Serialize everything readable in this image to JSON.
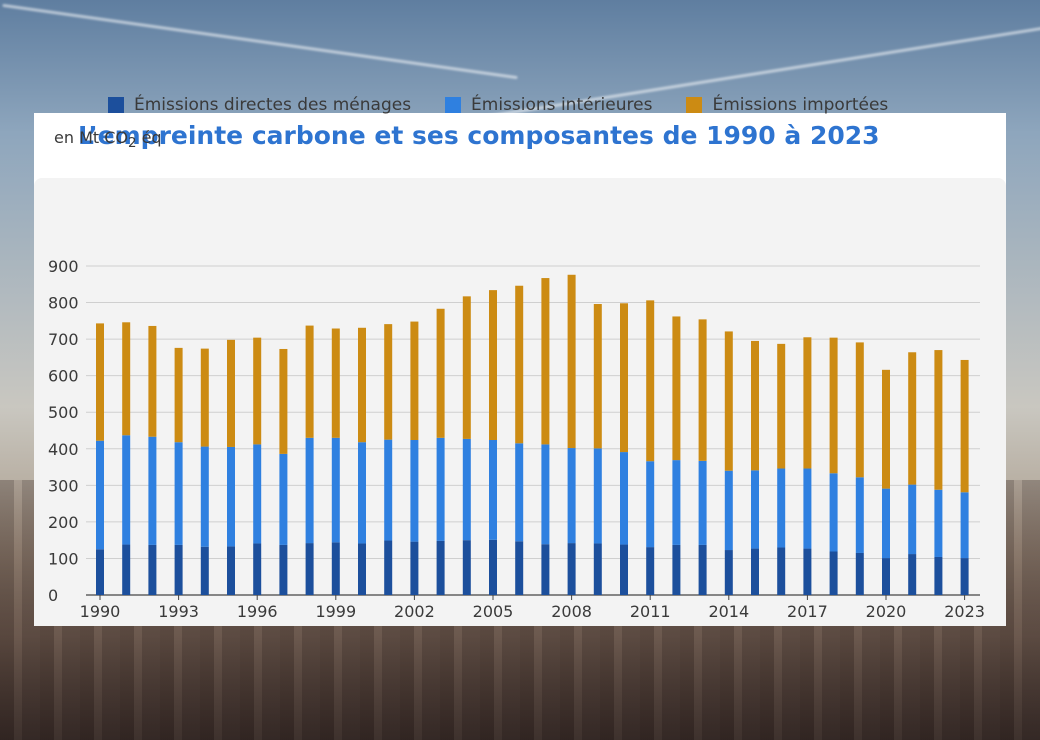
{
  "chart_data": {
    "type": "bar",
    "stacked": true,
    "title": "L’empreinte carbone et ses composantes de 1990 à 2023",
    "unit_label": {
      "prefix": "en Mt CO",
      "subscript": "2",
      "suffix": " éq"
    },
    "ylim": [
      0,
      900
    ],
    "yticks": [
      0,
      100,
      200,
      300,
      400,
      500,
      600,
      700,
      800,
      900
    ],
    "xtick_labels": [
      "1990",
      "1993",
      "1996",
      "1999",
      "2002",
      "2005",
      "2008",
      "2011",
      "2014",
      "2017",
      "2020",
      "2023"
    ],
    "grid": true,
    "legend_position": "top",
    "categories": [
      "1990",
      "1991",
      "1992",
      "1993",
      "1994",
      "1995",
      "1996",
      "1997",
      "1998",
      "1999",
      "2000",
      "2001",
      "2002",
      "2003",
      "2004",
      "2005",
      "2006",
      "2007",
      "2008",
      "2009",
      "2010",
      "2011",
      "2012",
      "2013",
      "2014",
      "2015",
      "2016",
      "2017",
      "2018",
      "2019",
      "2020",
      "2021",
      "2022",
      "2023"
    ],
    "series": [
      {
        "name": "Émissions directes des ménages",
        "color": "#1c4f9c",
        "values": [
          125,
          138,
          137,
          137,
          132,
          133,
          141,
          137,
          142,
          144,
          141,
          149,
          146,
          148,
          150,
          151,
          147,
          139,
          142,
          141,
          138,
          131,
          137,
          137,
          123,
          127,
          130,
          127,
          119,
          115,
          101,
          112,
          104,
          101
        ]
      },
      {
        "name": "Émissions intérieures",
        "color": "#2f80e0",
        "values": [
          297,
          299,
          296,
          281,
          274,
          272,
          271,
          249,
          288,
          286,
          277,
          276,
          278,
          282,
          277,
          273,
          268,
          273,
          260,
          260,
          253,
          235,
          232,
          230,
          217,
          214,
          216,
          219,
          214,
          207,
          190,
          190,
          184,
          180
        ]
      },
      {
        "name": "Émissions importées",
        "color": "#cc8b13",
        "values": [
          321,
          309,
          303,
          258,
          268,
          293,
          292,
          287,
          307,
          299,
          313,
          316,
          324,
          353,
          390,
          410,
          431,
          455,
          474,
          395,
          407,
          440,
          393,
          387,
          381,
          354,
          341,
          359,
          371,
          369,
          325,
          362,
          382,
          362
        ]
      }
    ]
  }
}
